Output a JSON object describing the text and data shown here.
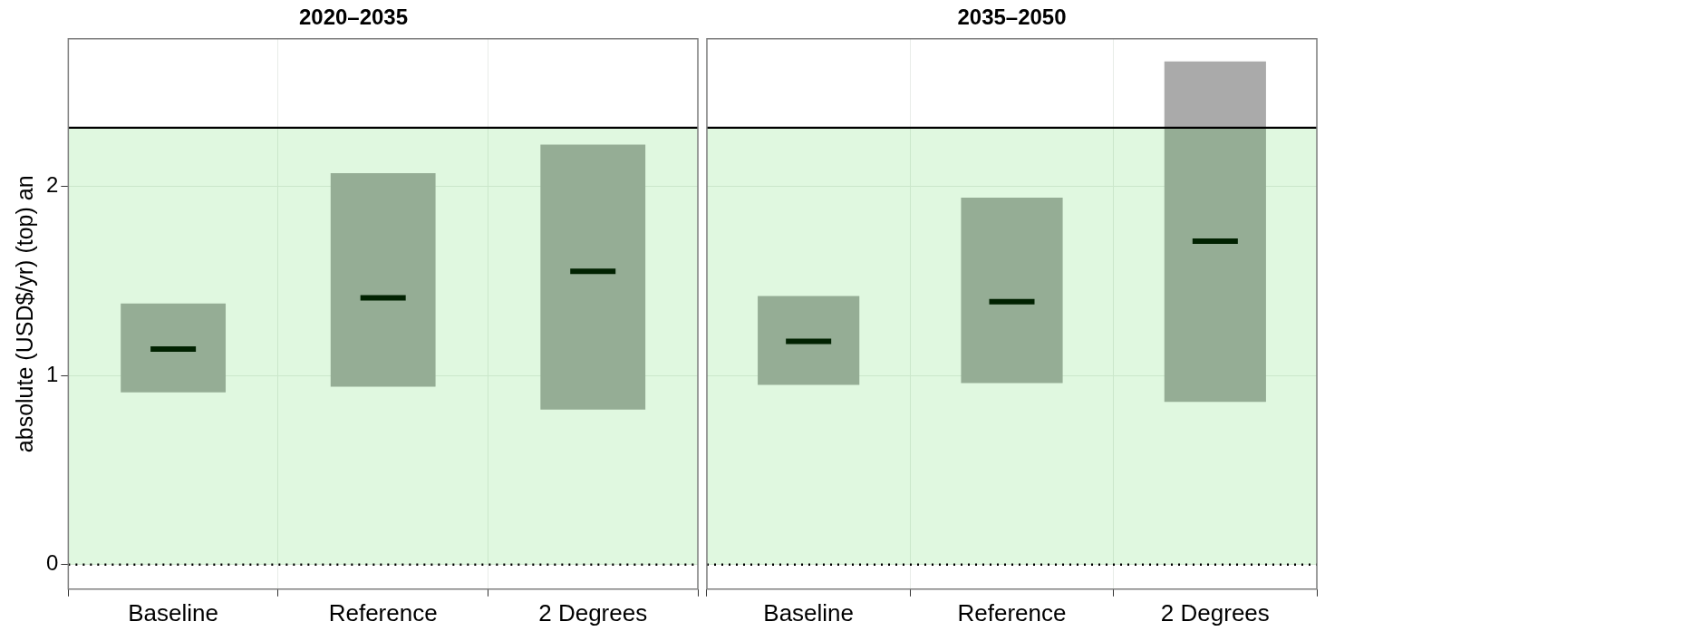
{
  "chart_data": [
    {
      "type": "box",
      "title": "2020–2035",
      "ylabel": "absolute (USD$/yr) (top) an",
      "categories": [
        "Baseline",
        "Reference",
        "2 Degrees"
      ],
      "color": "#aaaaaa",
      "boxes": [
        {
          "low": 0.91,
          "q1": 0.91,
          "median": 1.14,
          "q3": 1.38,
          "high": 1.38
        },
        {
          "low": 0.94,
          "q1": 0.94,
          "median": 1.41,
          "q3": 2.07,
          "high": 2.07
        },
        {
          "low": 0.82,
          "q1": 0.82,
          "median": 1.55,
          "q3": 2.22,
          "high": 2.22
        }
      ],
      "ylim": [
        -0.13,
        2.78
      ],
      "yticks": [
        0,
        1,
        2
      ],
      "grid": true,
      "ref_lines": [
        {
          "axis": "y",
          "value": 2.31,
          "label": null,
          "color": "#000000",
          "line_style": "solid"
        },
        {
          "axis": "y",
          "value": 0,
          "label": null,
          "color": "#000000",
          "line_style": "dotted"
        }
      ],
      "bands": [
        {
          "axis": "y",
          "from": 0,
          "to": 2.31,
          "label": null
        }
      ]
    },
    {
      "type": "box",
      "title": "2035–2050",
      "categories": [
        "Baseline",
        "Reference",
        "2 Degrees"
      ],
      "color": "#aaaaaa",
      "boxes": [
        {
          "low": 0.95,
          "q1": 0.95,
          "median": 1.18,
          "q3": 1.42,
          "high": 1.42
        },
        {
          "low": 0.96,
          "q1": 0.96,
          "median": 1.39,
          "q3": 1.94,
          "high": 1.94
        },
        {
          "low": 0.86,
          "q1": 0.86,
          "median": 1.71,
          "q3": 2.66,
          "high": 2.66
        }
      ],
      "ylim": [
        -0.13,
        2.78
      ],
      "yticks": [
        0,
        1,
        2
      ],
      "grid": true,
      "tick_labels": "x",
      "ref_lines": [
        {
          "axis": "y",
          "value": 2.31,
          "label": null,
          "color": "#000000",
          "line_style": "solid"
        },
        {
          "axis": "y",
          "value": 0,
          "label": null,
          "color": "#000000",
          "line_style": "dotted"
        }
      ],
      "bands": [
        {
          "axis": "y",
          "from": 0,
          "to": 2.31,
          "label": null
        }
      ]
    }
  ]
}
